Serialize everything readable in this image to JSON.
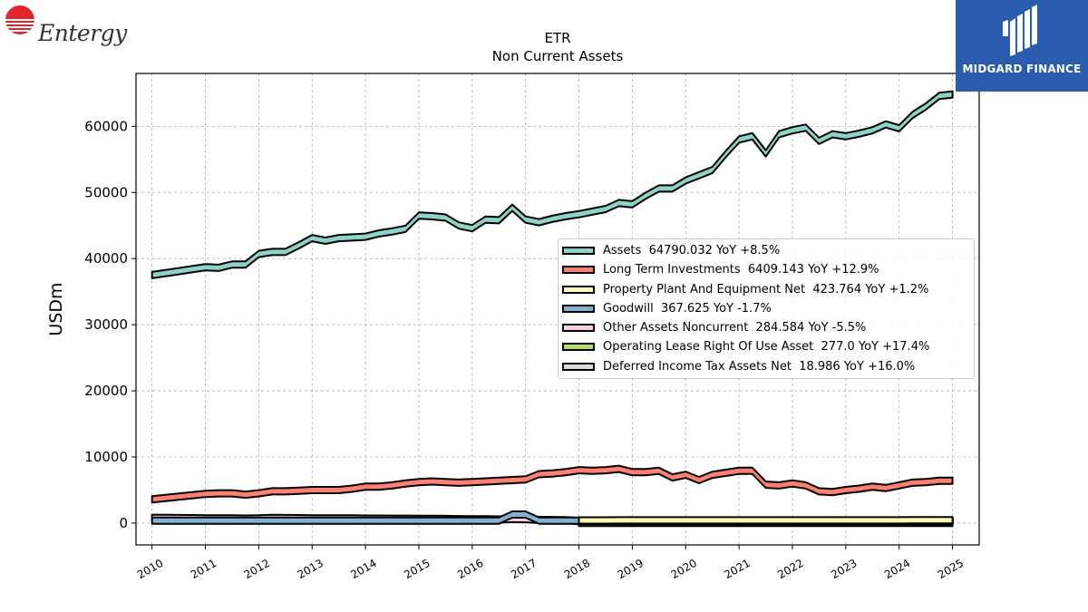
{
  "logos": {
    "left_brand": "Entergy",
    "right_brand": "MIDGARD FINANCE"
  },
  "chart_data": {
    "type": "area",
    "title": "ETR",
    "subtitle": "Non Current  Assets",
    "xlabel": "",
    "ylabel": "USDm",
    "xlim": [
      2009.7,
      2025.5
    ],
    "ylim": [
      -3300,
      68000
    ],
    "yticks": [
      0,
      10000,
      20000,
      30000,
      40000,
      50000,
      60000
    ],
    "xticks": [
      "2010",
      "2011",
      "2012",
      "2013",
      "2014",
      "2015",
      "2016",
      "2017",
      "2018",
      "2019",
      "2020",
      "2021",
      "2022",
      "2023",
      "2024",
      "2025"
    ],
    "grid": true,
    "legend_position": "center-right",
    "x": [
      2010.0,
      2010.25,
      2010.5,
      2010.75,
      2011.0,
      2011.25,
      2011.5,
      2011.75,
      2012.0,
      2012.25,
      2012.5,
      2012.75,
      2013.0,
      2013.25,
      2013.5,
      2013.75,
      2014.0,
      2014.25,
      2014.5,
      2014.75,
      2015.0,
      2015.25,
      2015.5,
      2015.75,
      2016.0,
      2016.25,
      2016.5,
      2016.75,
      2017.0,
      2017.25,
      2017.5,
      2017.75,
      2018.0,
      2018.25,
      2018.5,
      2018.75,
      2019.0,
      2019.25,
      2019.5,
      2019.75,
      2020.0,
      2020.25,
      2020.5,
      2020.75,
      2021.0,
      2021.25,
      2021.5,
      2021.75,
      2022.0,
      2022.25,
      2022.5,
      2022.75,
      2023.0,
      2023.25,
      2023.5,
      2023.75,
      2024.0,
      2024.25,
      2024.5,
      2024.75,
      2025.0
    ],
    "series": [
      {
        "name": "Assets",
        "legend_label": "Assets  64790.032 YoY +8.5%",
        "color": "#8dd3c7",
        "values": [
          37500,
          37800,
          38100,
          38400,
          38700,
          38600,
          39100,
          39100,
          40700,
          41000,
          41000,
          42000,
          43100,
          42700,
          43100,
          43200,
          43300,
          43800,
          44100,
          44500,
          46500,
          46400,
          46200,
          45000,
          44600,
          45900,
          45800,
          47700,
          45900,
          45500,
          46000,
          46400,
          46700,
          47100,
          47500,
          48400,
          48200,
          49500,
          50600,
          50600,
          51800,
          52600,
          53400,
          55800,
          58000,
          58500,
          55900,
          58800,
          59400,
          59800,
          57800,
          58800,
          58500,
          58900,
          59400,
          60300,
          59700,
          61700,
          63000,
          64600,
          64800
        ]
      },
      {
        "name": "Long Term Investments",
        "legend_label": "Long Term Investments  6409.143 YoY +12.9%",
        "color": "#fb8072",
        "values": [
          3600,
          3800,
          4000,
          4200,
          4400,
          4500,
          4500,
          4300,
          4500,
          4800,
          4800,
          4900,
          5000,
          5000,
          5000,
          5200,
          5500,
          5500,
          5700,
          6000,
          6200,
          6300,
          6200,
          6100,
          6200,
          6300,
          6400,
          6500,
          6600,
          7400,
          7500,
          7700,
          8000,
          7900,
          8000,
          8200,
          7700,
          7700,
          7900,
          6900,
          7300,
          6500,
          7300,
          7600,
          7900,
          7900,
          5800,
          5700,
          6000,
          5700,
          4800,
          4700,
          5000,
          5200,
          5500,
          5300,
          5700,
          6100,
          6200,
          6400,
          6400
        ]
      },
      {
        "name": "Property Plant And Equipment Net",
        "legend_label": "Property Plant And Equipment Net  423.764 YoY +1.2%",
        "color": "#ffffb3",
        "values": [
          0,
          0,
          0,
          0,
          0,
          0,
          0,
          0,
          0,
          0,
          0,
          0,
          0,
          0,
          0,
          0,
          0,
          0,
          0,
          0,
          0,
          0,
          0,
          0,
          0,
          0,
          0,
          0,
          0,
          0,
          0,
          0,
          400,
          405,
          405,
          410,
          410,
          410,
          412,
          412,
          414,
          414,
          416,
          416,
          418,
          418,
          418,
          419,
          419,
          419,
          420,
          420,
          421,
          421,
          422,
          422,
          422,
          423,
          423,
          423,
          424
        ]
      },
      {
        "name": "Goodwill",
        "legend_label": "Goodwill  367.625 YoY -1.7%",
        "color": "#80b1d3",
        "values": [
          380,
          380,
          380,
          380,
          380,
          380,
          380,
          380,
          380,
          380,
          380,
          380,
          380,
          380,
          380,
          380,
          380,
          380,
          380,
          380,
          380,
          380,
          380,
          380,
          380,
          380,
          380,
          1300,
          1300,
          375,
          375,
          375,
          375,
          375,
          375,
          375,
          375,
          375,
          375,
          375,
          375,
          375,
          375,
          375,
          375,
          375,
          375,
          375,
          375,
          375,
          375,
          375,
          375,
          374,
          372,
          372,
          372,
          370,
          370,
          368,
          368
        ]
      },
      {
        "name": "Other Assets Noncurrent",
        "legend_label": "Other Assets Noncurrent  284.584 YoY -5.5%",
        "color": "#fccde5",
        "values": [
          800,
          780,
          760,
          740,
          720,
          700,
          700,
          680,
          700,
          780,
          760,
          740,
          720,
          720,
          700,
          700,
          680,
          680,
          660,
          660,
          640,
          640,
          620,
          600,
          580,
          560,
          540,
          620,
          600,
          480,
          460,
          440,
          300,
          295,
          295,
          293,
          293,
          292,
          292,
          291,
          291,
          290,
          290,
          290,
          289,
          289,
          289,
          288,
          288,
          288,
          287,
          287,
          287,
          286,
          286,
          286,
          285,
          285,
          285,
          285,
          285
        ]
      },
      {
        "name": "Operating Lease Right Of Use Asset",
        "legend_label": "Operating Lease Right Of Use Asset  277.0 YoY +17.4%",
        "color": "#b3de69",
        "values": [
          0,
          0,
          0,
          0,
          0,
          0,
          0,
          0,
          0,
          0,
          0,
          0,
          0,
          0,
          0,
          0,
          0,
          0,
          0,
          0,
          0,
          0,
          0,
          0,
          0,
          0,
          0,
          0,
          0,
          0,
          0,
          0,
          0,
          0,
          0,
          0,
          240,
          240,
          240,
          240,
          240,
          240,
          240,
          240,
          240,
          240,
          240,
          240,
          240,
          240,
          240,
          240,
          240,
          240,
          240,
          240,
          240,
          250,
          260,
          270,
          277
        ]
      },
      {
        "name": "Deferred Income Tax Assets Net",
        "legend_label": "Deferred Income Tax Assets Net  18.986 YoY +16.0%",
        "color": "#d9d9d9",
        "values": [
          0,
          0,
          0,
          0,
          0,
          0,
          0,
          0,
          0,
          0,
          0,
          0,
          0,
          0,
          0,
          0,
          0,
          0,
          0,
          0,
          0,
          0,
          0,
          0,
          0,
          0,
          0,
          0,
          0,
          0,
          0,
          0,
          16,
          16,
          16,
          16,
          16,
          16,
          16,
          16,
          17,
          17,
          17,
          17,
          17,
          17,
          17,
          17,
          17,
          17,
          17,
          18,
          18,
          18,
          18,
          18,
          18,
          18,
          19,
          19,
          19
        ]
      }
    ]
  }
}
